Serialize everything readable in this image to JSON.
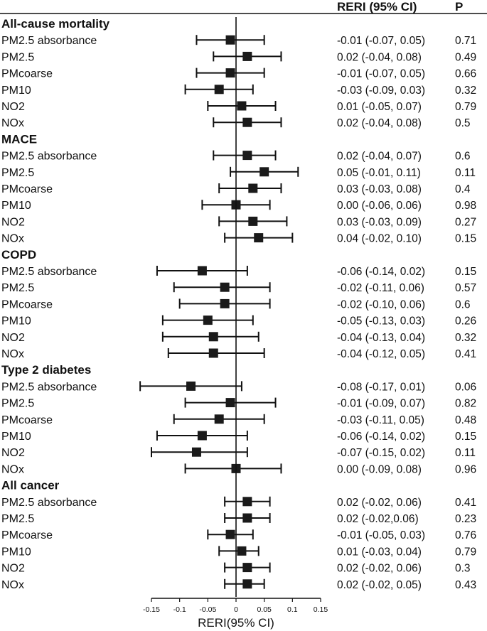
{
  "chart_data": {
    "type": "forest",
    "header": {
      "col_est": "RERI (95% CI)",
      "col_p": "P"
    },
    "xlabel": "RERI(95% CI)",
    "xlim": [
      -0.15,
      0.15
    ],
    "xticks": [
      -0.15,
      -0.1,
      -0.05,
      0,
      0.05,
      0.1,
      0.15
    ],
    "xtick_labels": [
      "-0.15",
      "-0.1",
      "-0.05",
      "0",
      "0.05",
      "0.1",
      "0.15"
    ],
    "groups": [
      {
        "name": "All-cause mortality",
        "rows": [
          {
            "label": "PM2.5 absorbance",
            "est": -0.01,
            "lo": -0.07,
            "hi": 0.05,
            "text": "-0.01 (-0.07, 0.05)",
            "p": "0.71"
          },
          {
            "label": "PM2.5",
            "est": 0.02,
            "lo": -0.04,
            "hi": 0.08,
            "text": "0.02 (-0.04, 0.08)",
            "p": "0.49"
          },
          {
            "label": "PMcoarse",
            "est": -0.01,
            "lo": -0.07,
            "hi": 0.05,
            "text": "-0.01 (-0.07, 0.05)",
            "p": "0.66"
          },
          {
            "label": "PM10",
            "est": -0.03,
            "lo": -0.09,
            "hi": 0.03,
            "text": "-0.03 (-0.09, 0.03)",
            "p": "0.32"
          },
          {
            "label": "NO2",
            "est": 0.01,
            "lo": -0.05,
            "hi": 0.07,
            "text": "0.01 (-0.05, 0.07)",
            "p": "0.79"
          },
          {
            "label": "NOx",
            "est": 0.02,
            "lo": -0.04,
            "hi": 0.08,
            "text": "0.02 (-0.04, 0.08)",
            "p": "0.5"
          }
        ]
      },
      {
        "name": "MACE",
        "rows": [
          {
            "label": "PM2.5 absorbance",
            "est": 0.02,
            "lo": -0.04,
            "hi": 0.07,
            "text": "0.02 (-0.04, 0.07)",
            "p": "0.6"
          },
          {
            "label": "PM2.5",
            "est": 0.05,
            "lo": -0.01,
            "hi": 0.11,
            "text": "0.05 (-0.01, 0.11)",
            "p": "0.11"
          },
          {
            "label": "PMcoarse",
            "est": 0.03,
            "lo": -0.03,
            "hi": 0.08,
            "text": "0.03 (-0.03, 0.08)",
            "p": "0.4"
          },
          {
            "label": "PM10",
            "est": 0.0,
            "lo": -0.06,
            "hi": 0.06,
            "text": "0.00 (-0.06, 0.06)",
            "p": "0.98"
          },
          {
            "label": "NO2",
            "est": 0.03,
            "lo": -0.03,
            "hi": 0.09,
            "text": "0.03 (-0.03, 0.09)",
            "p": "0.27"
          },
          {
            "label": "NOx",
            "est": 0.04,
            "lo": -0.02,
            "hi": 0.1,
            "text": "0.04 (-0.02, 0.10)",
            "p": "0.15"
          }
        ]
      },
      {
        "name": "COPD",
        "rows": [
          {
            "label": "PM2.5 absorbance",
            "est": -0.06,
            "lo": -0.14,
            "hi": 0.02,
            "text": "-0.06 (-0.14, 0.02)",
            "p": "0.15"
          },
          {
            "label": "PM2.5",
            "est": -0.02,
            "lo": -0.11,
            "hi": 0.06,
            "text": "-0.02 (-0.11, 0.06)",
            "p": "0.57"
          },
          {
            "label": "PMcoarse",
            "est": -0.02,
            "lo": -0.1,
            "hi": 0.06,
            "text": "-0.02 (-0.10, 0.06)",
            "p": "0.6"
          },
          {
            "label": "PM10",
            "est": -0.05,
            "lo": -0.13,
            "hi": 0.03,
            "text": "-0.05 (-0.13, 0.03)",
            "p": "0.26"
          },
          {
            "label": "NO2",
            "est": -0.04,
            "lo": -0.13,
            "hi": 0.04,
            "text": "-0.04 (-0.13, 0.04)",
            "p": "0.32"
          },
          {
            "label": "NOx",
            "est": -0.04,
            "lo": -0.12,
            "hi": 0.05,
            "text": "-0.04 (-0.12, 0.05)",
            "p": "0.41"
          }
        ]
      },
      {
        "name": "Type 2 diabetes",
        "rows": [
          {
            "label": "PM2.5 absorbance",
            "est": -0.08,
            "lo": -0.17,
            "hi": 0.01,
            "text": "-0.08 (-0.17, 0.01)",
            "p": "0.06"
          },
          {
            "label": "PM2.5",
            "est": -0.01,
            "lo": -0.09,
            "hi": 0.07,
            "text": "-0.01 (-0.09, 0.07)",
            "p": "0.82"
          },
          {
            "label": "PMcoarse",
            "est": -0.03,
            "lo": -0.11,
            "hi": 0.05,
            "text": "-0.03 (-0.11, 0.05)",
            "p": "0.48"
          },
          {
            "label": "PM10",
            "est": -0.06,
            "lo": -0.14,
            "hi": 0.02,
            "text": "-0.06 (-0.14, 0.02)",
            "p": "0.15"
          },
          {
            "label": "NO2",
            "est": -0.07,
            "lo": -0.15,
            "hi": 0.02,
            "text": "-0.07 (-0.15, 0.02)",
            "p": "0.11"
          },
          {
            "label": "NOx",
            "est": 0.0,
            "lo": -0.09,
            "hi": 0.08,
            "text": "0.00 (-0.09, 0.08)",
            "p": "0.96"
          }
        ]
      },
      {
        "name": "All cancer",
        "rows": [
          {
            "label": "PM2.5 absorbance",
            "est": 0.02,
            "lo": -0.02,
            "hi": 0.06,
            "text": "0.02 (-0.02, 0.06)",
            "p": "0.41"
          },
          {
            "label": "PM2.5",
            "est": 0.02,
            "lo": -0.02,
            "hi": 0.06,
            "text": "0.02 (-0.02,0.06)",
            "p": "0.23"
          },
          {
            "label": "PMcoarse",
            "est": -0.01,
            "lo": -0.05,
            "hi": 0.03,
            "text": "-0.01 (-0.05, 0.03)",
            "p": "0.76"
          },
          {
            "label": "PM10",
            "est": 0.01,
            "lo": -0.03,
            "hi": 0.04,
            "text": "0.01 (-0.03, 0.04)",
            "p": "0.79"
          },
          {
            "label": "NO2",
            "est": 0.02,
            "lo": -0.02,
            "hi": 0.06,
            "text": "0.02 (-0.02, 0.06)",
            "p": "0.3"
          },
          {
            "label": "NOx",
            "est": 0.02,
            "lo": -0.02,
            "hi": 0.05,
            "text": "0.02 (-0.02, 0.05)",
            "p": "0.43"
          }
        ]
      }
    ]
  }
}
